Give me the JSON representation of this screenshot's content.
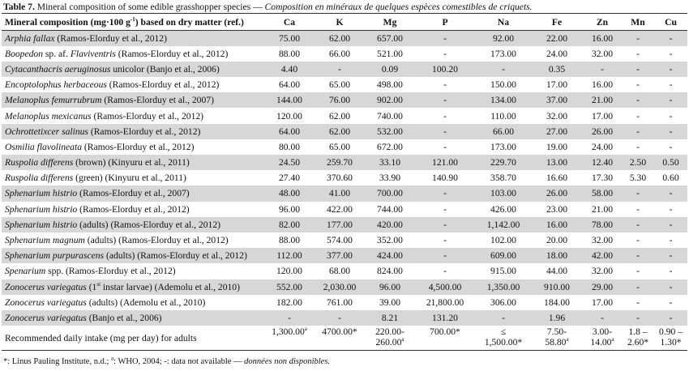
{
  "caption": {
    "label": "Table 7.",
    "text": " Mineral composition of some edible grasshopper species — ",
    "french": "Composition en minéraux de quelques espèces comestibles de criquets."
  },
  "headers": {
    "first_main": "Mineral composition (mg·100 g",
    "first_sup": "-1",
    "first_tail": ") based on dry matter (ref.)",
    "columns": [
      "Ca",
      "K",
      "Mg",
      "P",
      "Na",
      "Fe",
      "Zn",
      "Mn",
      "Cu"
    ]
  },
  "rows": [
    {
      "species": "Arphia fallax",
      "detail": "",
      "ref": " (Ramos-Elorduy et al., 2012)",
      "values": [
        "75.00",
        "62.00",
        "657.00",
        "-",
        "92.00",
        "22.00",
        "16.00",
        "-",
        "-"
      ],
      "shade": true
    },
    {
      "species": "Boopedon",
      "detail": " sp. af. ",
      "species2": "Flaviventris",
      "ref": " (Ramos-Elorduy et al., 2012)",
      "values": [
        "88.00",
        "66.00",
        "521.00",
        "-",
        "173.00",
        "24.00",
        "32.00",
        "-",
        "-"
      ],
      "shade": false
    },
    {
      "species": "Cytacanthacris aeruginosus",
      "detail": " unicolor",
      "ref": " (Banjo et al., 2006)",
      "values": [
        "4.40",
        "-",
        "0.09",
        "100.20",
        "-",
        "0.35",
        "-",
        "-",
        "-"
      ],
      "shade": true
    },
    {
      "species": "Encoptolophus herbaceous",
      "detail": "",
      "ref": " (Ramos-Elorduy et al., 2012)",
      "values": [
        "64.00",
        "65.00",
        "498.00",
        "-",
        "150.00",
        "17.00",
        "16.00",
        "-",
        "-"
      ],
      "shade": false
    },
    {
      "species": "Melanoplus femurrubrum",
      "detail": "",
      "ref": " (Ramos-Elorduy et al., 2007)",
      "values": [
        "144.00",
        "76.00",
        "902.00",
        "-",
        "134.00",
        "37.00",
        "21.00",
        "-",
        "-"
      ],
      "shade": true
    },
    {
      "species": "Melanoplus mexicanus",
      "detail": "",
      "ref": " (Ramos-Elorduy et al., 2012)",
      "values": [
        "120.00",
        "62.00",
        "740.00",
        "-",
        "110.00",
        "32.00",
        "17.00",
        "-",
        "-"
      ],
      "shade": false
    },
    {
      "species": "Ochrottetixcer salinus",
      "detail": "",
      "ref": " (Ramos-Elorduy et al., 2012)",
      "values": [
        "64.00",
        "62.00",
        "532.00",
        "-",
        "66.00",
        "27.00",
        "26.00",
        "-",
        "-"
      ],
      "shade": true
    },
    {
      "species": "Osmilia flavolineata",
      "detail": "",
      "ref": " (Ramos-Elorduy et al., 2012)",
      "values": [
        "80.00",
        "65.00",
        "672.00",
        "-",
        "173.00",
        "19.00",
        "24.00",
        "-",
        "-"
      ],
      "shade": false
    },
    {
      "species": "Ruspolia differens",
      "detail": " (brown)",
      "ref": " (Kinyuru et al., 2011)",
      "values": [
        "24.50",
        "259.70",
        "33.10",
        "121.00",
        "229.70",
        "13.00",
        "12.40",
        "2.50",
        "0.50"
      ],
      "shade": true
    },
    {
      "species": "Ruspolia differens",
      "detail": " (green)",
      "ref": " (Kinyuru et al., 2011)",
      "values": [
        "27.40",
        "370.60",
        "33.90",
        "140.90",
        "358.70",
        "16.60",
        "17.30",
        "5.30",
        "0.60"
      ],
      "shade": false
    },
    {
      "species": "Sphenarium histrio",
      "detail": "",
      "ref": " (Ramos-Elorduy et al., 2007)",
      "values": [
        "48.00",
        "41.00",
        "700.00",
        "-",
        "103.00",
        "26.00",
        "58.00",
        "-",
        "-"
      ],
      "shade": true
    },
    {
      "species": "Sphenarium histrio",
      "detail": "",
      "ref": " (Ramos-Elorduy et al., 2012)",
      "values": [
        "96.00",
        "422.00",
        "744.00",
        "-",
        "426.00",
        "23.00",
        "21.00",
        "-",
        "-"
      ],
      "shade": false
    },
    {
      "species": "Sphenarium histrio",
      "detail": " (adults)",
      "ref": " (Ramos-Elorduy et al., 2012)",
      "values": [
        "82.00",
        "177.00",
        "420.00",
        "-",
        "1,142.00",
        "16.00",
        "78.00",
        "-",
        "-"
      ],
      "shade": true
    },
    {
      "species": "Sphenarium magnum",
      "detail": " (adults)",
      "ref": " (Ramos-Elorduy et al., 2012)",
      "values": [
        "88.00",
        "574.00",
        "352.00",
        "-",
        "102.00",
        "20.00",
        "32.00",
        "-",
        "-"
      ],
      "shade": false
    },
    {
      "species": "Sphenarium purpurascens",
      "detail": " (adults)",
      "ref": " (Ramos-Elorduy et al., 2012)",
      "values": [
        "112.00",
        "377.00",
        "424.00",
        "-",
        "609.00",
        "18.00",
        "42.00",
        "-",
        "-"
      ],
      "shade": true
    },
    {
      "species": "Spenarium",
      "detail": " spp.",
      "ref": " (Ramos-Elorduy et al., 2012)",
      "values": [
        "120.00",
        "68.00",
        "824.00",
        "-",
        "915.00",
        "44.00",
        "32.00",
        "-",
        "-"
      ],
      "shade": false
    },
    {
      "species": "Zonocerus variegatus",
      "detail": " (1",
      "sup": "st",
      "detail2": " instar larvae)",
      "ref": " (Ademolu et al., 2010)",
      "values": [
        "552.00",
        "2,030.00",
        "96.00",
        "4,500.00",
        "1,350.00",
        "910.00",
        "29.00",
        "-",
        "-"
      ],
      "shade": true
    },
    {
      "species": "Zonocerus variegatus",
      "detail": " (adults)",
      "ref": " (Ademolu et al., 2010)",
      "values": [
        "182.00",
        "761.00",
        "39.00",
        "21,800.00",
        "306.00",
        "184.00",
        "17.00",
        "-",
        "-"
      ],
      "shade": false
    },
    {
      "species": "Zonocerus variegatus",
      "detail": "",
      "ref": " (Banjo et al., 2006)",
      "values": [
        "-",
        "-",
        "8.21",
        "131.20",
        "-",
        "1.96",
        "-",
        "-",
        "-"
      ],
      "shade": true
    }
  ],
  "recommended": {
    "label": "Recommended daily intake (mg per day) for adults",
    "values": [
      {
        "l1": "1,300.00",
        "s1": "a",
        "l2": "",
        "s2": ""
      },
      {
        "l1": "4700.00*",
        "s1": "",
        "l2": "",
        "s2": ""
      },
      {
        "l1": "220.00-",
        "s1": "",
        "l2": "260.00",
        "s2": "a"
      },
      {
        "l1": "700.00*",
        "s1": "",
        "l2": "",
        "s2": ""
      },
      {
        "l1": "≤",
        "s1": "",
        "l2": "1,500.00*",
        "s2": ""
      },
      {
        "l1": "7.50-",
        "s1": "",
        "l2": "58.80",
        "s2": "a"
      },
      {
        "l1": "3.00-",
        "s1": "",
        "l2": "14.00",
        "s2": "a"
      },
      {
        "l1": "1.8 –",
        "s1": "",
        "l2": "2.60*",
        "s2": ""
      },
      {
        "l1": "0.90 –",
        "s1": "",
        "l2": "1.30*",
        "s2": ""
      }
    ]
  },
  "footnote": {
    "text": "*: Linus Pauling Institute, n.d.; ",
    "sup": "a",
    "text2": ": WHO, 2004; -: data not available — ",
    "french": "données non disponibles."
  }
}
